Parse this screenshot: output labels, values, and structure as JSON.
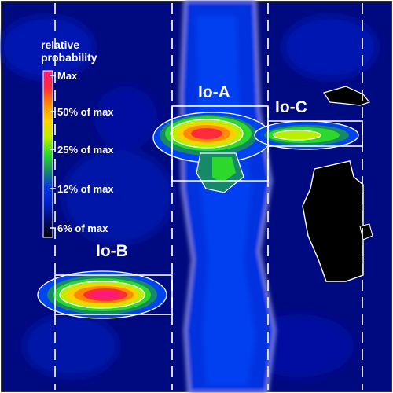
{
  "chart_data": {
    "type": "heatmap",
    "title": "",
    "xlabel": "",
    "ylabel": "",
    "colorbar": {
      "title_lines": [
        "relative",
        "probability"
      ],
      "ticks": [
        {
          "label": "Max",
          "value": 1.0
        },
        {
          "label": "50% of max",
          "value": 0.5
        },
        {
          "label": "25% of max",
          "value": 0.25
        },
        {
          "label": "12% of max",
          "value": 0.12
        },
        {
          "label": "6% of max",
          "value": 0.06
        }
      ],
      "colors": [
        "#ff1a7a",
        "#ff2a3c",
        "#ff8a00",
        "#ffd000",
        "#b8f000",
        "#2cd82c",
        "#1a8a6a",
        "#0038e0",
        "#0020c8",
        "#000c6a",
        "#000000"
      ]
    },
    "regions": [
      {
        "label": "Io-A",
        "peak_relative_probability": 1.0
      },
      {
        "label": "Io-B",
        "peak_relative_probability": 1.0
      },
      {
        "label": "Io-C",
        "peak_relative_probability": 0.5
      }
    ],
    "colors": {
      "background": "#000a80",
      "dashed_lines": "#d8d8d8",
      "box": "#ffffff"
    }
  }
}
